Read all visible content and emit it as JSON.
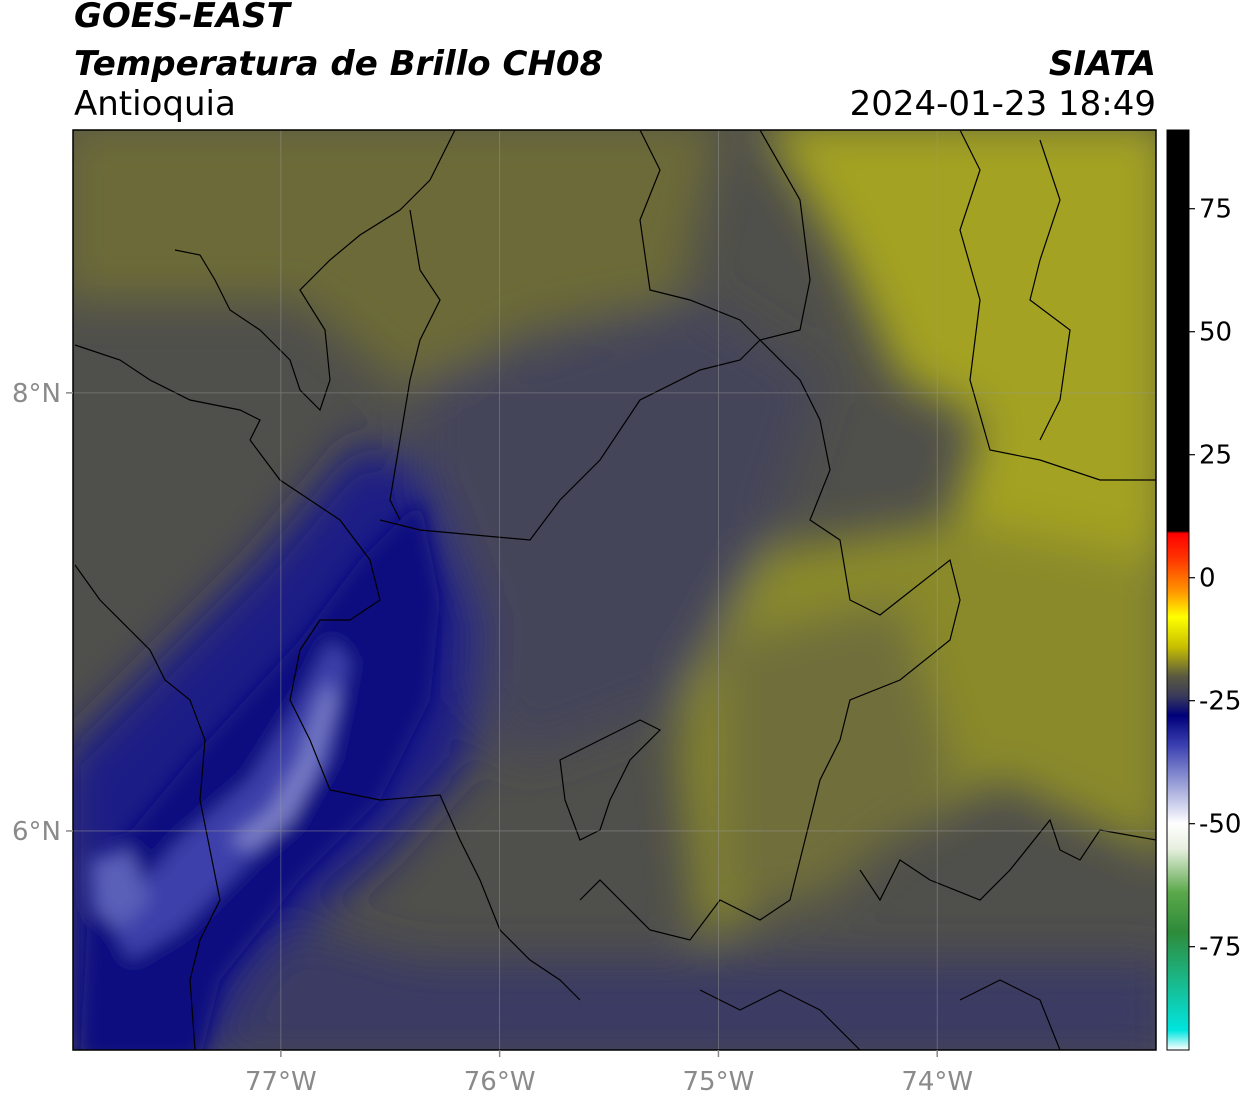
{
  "header": {
    "satellite": "GOES-EAST",
    "product": "Temperatura de Brillo CH08",
    "region": "Antioquia",
    "agency": "SIATA",
    "datetime": "2024-01-23 18:49"
  },
  "map": {
    "lon_range": [
      -77.95,
      -73.0
    ],
    "lat_range": [
      5.0,
      9.2
    ],
    "lon_ticks": [
      {
        "value": -77,
        "label": "77°W"
      },
      {
        "value": -76,
        "label": "76°W"
      },
      {
        "value": -75,
        "label": "75°W"
      },
      {
        "value": -74,
        "label": "74°W"
      }
    ],
    "lat_ticks": [
      {
        "value": 8,
        "label": "8°N"
      },
      {
        "value": 6,
        "label": "6°N"
      }
    ],
    "grid": true
  },
  "colorbar": {
    "range": [
      -96,
      91
    ],
    "ticks": [
      {
        "value": 75,
        "label": "75"
      },
      {
        "value": 50,
        "label": "50"
      },
      {
        "value": 25,
        "label": "25"
      },
      {
        "value": 0,
        "label": "0"
      },
      {
        "value": -25,
        "label": "-25"
      },
      {
        "value": -50,
        "label": "-50"
      },
      {
        "value": -75,
        "label": "-75"
      }
    ],
    "stops": [
      {
        "value": -96,
        "color": "#ffffff"
      },
      {
        "value": -92,
        "color": "#00e5e0"
      },
      {
        "value": -82,
        "color": "#1ab88a"
      },
      {
        "value": -72,
        "color": "#2e8b3a"
      },
      {
        "value": -64,
        "color": "#5aa84a"
      },
      {
        "value": -55,
        "color": "#e8f0e0"
      },
      {
        "value": -50,
        "color": "#ffffff"
      },
      {
        "value": -42,
        "color": "#9aa0d8"
      },
      {
        "value": -34,
        "color": "#3a3fb0"
      },
      {
        "value": -28,
        "color": "#00007a"
      },
      {
        "value": -24,
        "color": "#3a3a5a"
      },
      {
        "value": -20,
        "color": "#5a5a40"
      },
      {
        "value": -14,
        "color": "#c8c000"
      },
      {
        "value": -8,
        "color": "#ffff00"
      },
      {
        "value": -3,
        "color": "#ff9900"
      },
      {
        "value": 4,
        "color": "#ff3300"
      },
      {
        "value": 9,
        "color": "#ff0000"
      },
      {
        "value": 9.5,
        "color": "#000000"
      },
      {
        "value": 91,
        "color": "#000000"
      }
    ]
  }
}
